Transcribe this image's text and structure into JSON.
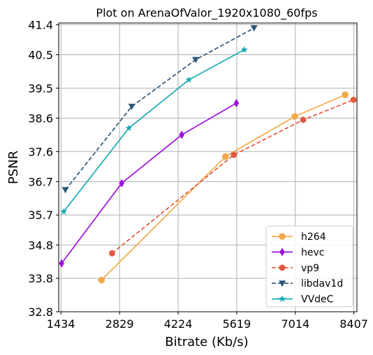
{
  "chart_data": {
    "type": "line",
    "title": "Plot on ArenaOfValor_1920x1080_60fps",
    "xlabel": "Bitrate (Kb/s)",
    "ylabel": "PSNR",
    "xlim": [
      1380,
      8480
    ],
    "ylim": [
      32.8,
      41.45
    ],
    "xticks": [
      1434,
      2829,
      4224,
      5619,
      7014,
      8407
    ],
    "yticks": [
      32.8,
      33.8,
      34.8,
      35.7,
      36.7,
      37.6,
      38.6,
      39.5,
      40.5,
      41.4
    ],
    "grid": true,
    "legend_position": "lower right",
    "series": [
      {
        "name": "h264",
        "color": "#f5a94a",
        "dashed": false,
        "marker": "circle",
        "x": [
          2400,
          5350,
          7000,
          8200
        ],
        "y": [
          33.75,
          37.45,
          38.65,
          39.3
        ]
      },
      {
        "name": "hevc",
        "color": "#9b11dc",
        "dashed": false,
        "marker": "diamond",
        "x": [
          1450,
          2880,
          4310,
          5610
        ],
        "y": [
          34.25,
          36.65,
          38.1,
          39.05
        ]
      },
      {
        "name": "vp9",
        "color": "#e05a40",
        "dashed": true,
        "marker": "hexagon",
        "x": [
          2650,
          5550,
          7200,
          8400
        ],
        "y": [
          34.55,
          37.5,
          38.55,
          39.15
        ]
      },
      {
        "name": "libdav1d",
        "color": "#2e5877",
        "dashed": true,
        "marker": "triangle-down",
        "x": [
          1540,
          3120,
          4640,
          6030
        ],
        "y": [
          36.45,
          38.95,
          40.35,
          41.3
        ]
      },
      {
        "name": "VVdeC",
        "color": "#17a9b4",
        "dashed": false,
        "marker": "star",
        "x": [
          1500,
          3050,
          4480,
          5800
        ],
        "y": [
          35.8,
          38.3,
          39.75,
          40.65
        ]
      }
    ]
  }
}
